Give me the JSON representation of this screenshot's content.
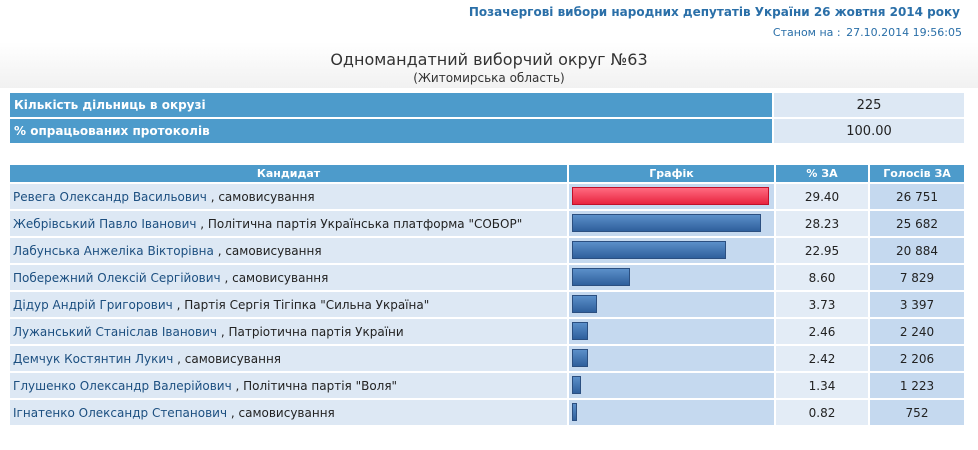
{
  "header": {
    "title": "Позачергові вибори народних депутатів України 26 жовтня 2014 року",
    "timestamp_label": "Станом на :",
    "timestamp": "27.10.2014 19:56:05"
  },
  "district": {
    "name": "Одномандатний виборчий округ №63",
    "region": "(Житомирська область)"
  },
  "summary": [
    {
      "label": "Кількість дільниць в окрузі",
      "value": "225"
    },
    {
      "label": "% опрацьованих протоколів",
      "value": "100.00"
    }
  ],
  "columns": {
    "candidate": "Кандидат",
    "chart": "Графік",
    "percent": "% ЗА",
    "votes": "Голосів ЗА"
  },
  "colors": {
    "leader_bar": "#e8243f",
    "bar": "#2f5f9c",
    "header_bg": "#4d9bcb"
  },
  "chart_data": {
    "type": "bar",
    "ylim": [
      0,
      30
    ],
    "categories": [
      "Ревега Олександр Васильович",
      "Жебрівський Павло Іванович",
      "Лабунська Анжеліка Вікторівна",
      "Побережний Олексій Сергійович",
      "Дідур Андрій Григорович",
      "Лужанський Станіслав Іванович",
      "Демчук Костянтин Лукич",
      "Глушенко Олександр Валерійович",
      "Ігнатенко Олександр Степанович"
    ],
    "values": [
      29.4,
      28.23,
      22.95,
      8.6,
      3.73,
      2.46,
      2.42,
      1.34,
      0.82
    ]
  },
  "candidates": [
    {
      "name": "Ревега Олександр Васильович",
      "party": ", самовисування",
      "percent": "29.40",
      "votes": "26 751"
    },
    {
      "name": "Жебрівський Павло Іванович",
      "party": ", Політична партія Українська платформа \"СОБОР\"",
      "percent": "28.23",
      "votes": "25 682"
    },
    {
      "name": "Лабунська Анжеліка Вікторівна",
      "party": ", самовисування",
      "percent": "22.95",
      "votes": "20 884"
    },
    {
      "name": "Побережний Олексій Сергійович",
      "party": ", самовисування",
      "percent": "8.60",
      "votes": "7 829"
    },
    {
      "name": "Дідур Андрій Григорович",
      "party": ", Партія Сергія Тігіпка \"Сильна Україна\"",
      "percent": "3.73",
      "votes": "3 397"
    },
    {
      "name": "Лужанський Станіслав Іванович",
      "party": ", Патріотична партія України",
      "percent": "2.46",
      "votes": "2 240"
    },
    {
      "name": "Демчук Костянтин Лукич",
      "party": ", самовисування",
      "percent": "2.42",
      "votes": "2 206"
    },
    {
      "name": "Глушенко Олександр Валерійович",
      "party": ", Політична партія \"Воля\"",
      "percent": "1.34",
      "votes": "1 223"
    },
    {
      "name": "Ігнатенко Олександр Степанович",
      "party": ", самовисування",
      "percent": "0.82",
      "votes": "752"
    }
  ]
}
